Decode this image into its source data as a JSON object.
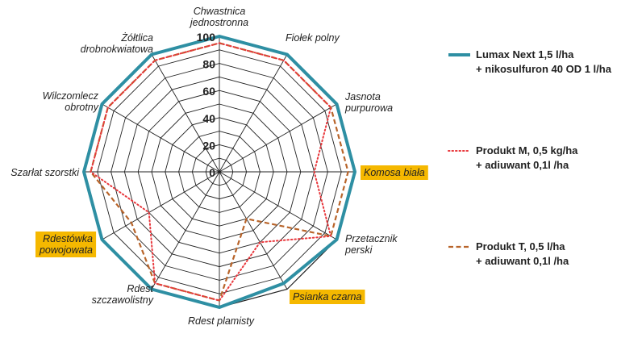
{
  "chart_data": {
    "type": "radar",
    "rlim": [
      0,
      100
    ],
    "ticks": [
      "0",
      "20",
      "40",
      "60",
      "80",
      "100"
    ],
    "tick_values": [
      0,
      20,
      40,
      60,
      80,
      100
    ],
    "categories": [
      {
        "lines": [
          "Chwastnica",
          "jednostronna"
        ],
        "highlight": false
      },
      {
        "lines": [
          "Fiołek polny"
        ],
        "highlight": false
      },
      {
        "lines": [
          "Jasnota",
          "purpurowa"
        ],
        "highlight": false
      },
      {
        "lines": [
          "Komosa biała"
        ],
        "highlight": true
      },
      {
        "lines": [
          "Przetacznik",
          "perski"
        ],
        "highlight": false
      },
      {
        "lines": [
          "Psianka czarna"
        ],
        "highlight": true
      },
      {
        "lines": [
          "Rdest plamisty"
        ],
        "highlight": false
      },
      {
        "lines": [
          "Rdest",
          "szczawolistny"
        ],
        "highlight": false
      },
      {
        "lines": [
          "Rdestówka",
          "powojowata"
        ],
        "highlight": true
      },
      {
        "lines": [
          "Szarłat szorstki"
        ],
        "highlight": false
      },
      {
        "lines": [
          "Wilczomlecz",
          "obrotny"
        ],
        "highlight": false
      },
      {
        "lines": [
          "Żółtlica",
          "drobnokwiatowa"
        ],
        "highlight": false
      }
    ],
    "series": [
      {
        "name_lines": [
          "Lumax Next 1,5 l/ha",
          "+ nikosulfuron 40 OD 1 l/ha"
        ],
        "style": "solid",
        "color": "#2e8fa3",
        "values": [
          100,
          100,
          100,
          100,
          100,
          95,
          100,
          100,
          100,
          100,
          100,
          100
        ]
      },
      {
        "name_lines": [
          "Produkt M, 0,5 kg/ha",
          "+ adiuwant 0,1l /ha"
        ],
        "style": "dotted",
        "color": "#e8383d",
        "values": [
          95,
          95,
          95,
          70,
          95,
          60,
          95,
          95,
          60,
          95,
          95,
          95
        ]
      },
      {
        "name_lines": [
          "Produkt T, 0,5 l/ha",
          "+ adiuwant 0,1l /ha"
        ],
        "style": "dashed",
        "color": "#b8642a",
        "values": [
          95,
          95,
          95,
          95,
          95,
          40,
          95,
          95,
          75,
          95,
          95,
          95
        ]
      }
    ]
  },
  "colors": {
    "grid": "#222222",
    "highlight_bg": "#f5b800"
  }
}
